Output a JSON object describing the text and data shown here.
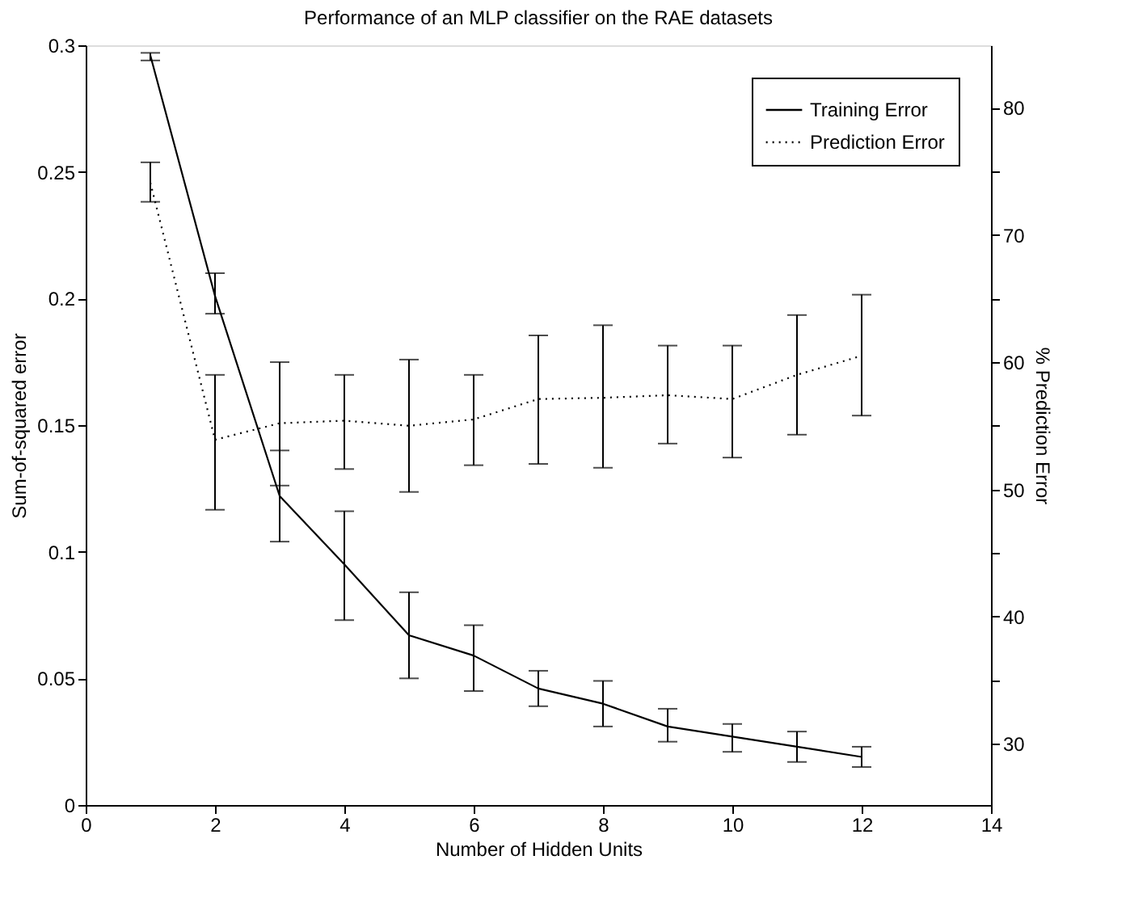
{
  "chart_data": {
    "type": "line",
    "title": "Performance of an MLP classifier on the RAE datasets",
    "xlabel": "Number of Hidden Units",
    "ylabel": "Sum-of-squared error",
    "y2label": "% Prediction Error",
    "x": [
      1,
      2,
      3,
      4,
      5,
      6,
      7,
      8,
      9,
      10,
      11,
      12
    ],
    "series": [
      {
        "name": "Training Error",
        "color": "#000000",
        "line_style": "solid",
        "values": [
          0.296,
          0.201,
          0.122,
          0.095,
          0.067,
          0.059,
          0.046,
          0.04,
          0.031,
          0.027,
          0.023,
          0.019
        ],
        "errors": [
          [
            0.294,
            0.297
          ],
          [
            0.194,
            0.21
          ],
          [
            0.104,
            0.14
          ],
          [
            0.073,
            0.116
          ],
          [
            0.05,
            0.084
          ],
          [
            0.045,
            0.071
          ],
          [
            0.039,
            0.053
          ],
          [
            0.031,
            0.049
          ],
          [
            0.025,
            0.038
          ],
          [
            0.021,
            0.032
          ],
          [
            0.017,
            0.029
          ],
          [
            0.015,
            0.023
          ]
        ]
      },
      {
        "name": "Prediction Error",
        "color": "#000000",
        "line_style": "dotted",
        "axis": "y2",
        "values": [
          74.1,
          53.9,
          55.2,
          55.4,
          55.0,
          55.5,
          57.1,
          57.2,
          57.4,
          57.1,
          59.0,
          60.5
        ],
        "errors": [
          [
            72.6,
            75.7
          ],
          [
            48.4,
            59.0
          ],
          [
            50.3,
            60.0
          ],
          [
            51.6,
            59.0
          ],
          [
            49.8,
            60.2
          ],
          [
            51.9,
            59.0
          ],
          [
            52.0,
            62.1
          ],
          [
            51.7,
            62.9
          ],
          [
            53.6,
            61.3
          ],
          [
            52.5,
            61.3
          ],
          [
            54.3,
            63.7
          ],
          [
            55.8,
            65.3
          ]
        ]
      }
    ],
    "xlim": [
      0,
      14
    ],
    "xticks": [
      0,
      2,
      4,
      6,
      8,
      10,
      12,
      14
    ],
    "ylim": [
      0,
      0.3
    ],
    "yticks": [
      0,
      0.05,
      0.1,
      0.15,
      0.2,
      0.25,
      0.3
    ],
    "y2lim": [
      25.2,
      84.9
    ],
    "y2ticks": [
      30,
      {
        "value": 35,
        "label": null
      },
      40,
      {
        "value": 45,
        "label": null
      },
      50,
      {
        "value": 55,
        "label": null
      },
      60,
      {
        "value": 65,
        "label": null
      },
      70,
      {
        "value": 75,
        "label": null
      },
      80
    ],
    "legend": "top right",
    "grid": false,
    "marker": "none"
  }
}
